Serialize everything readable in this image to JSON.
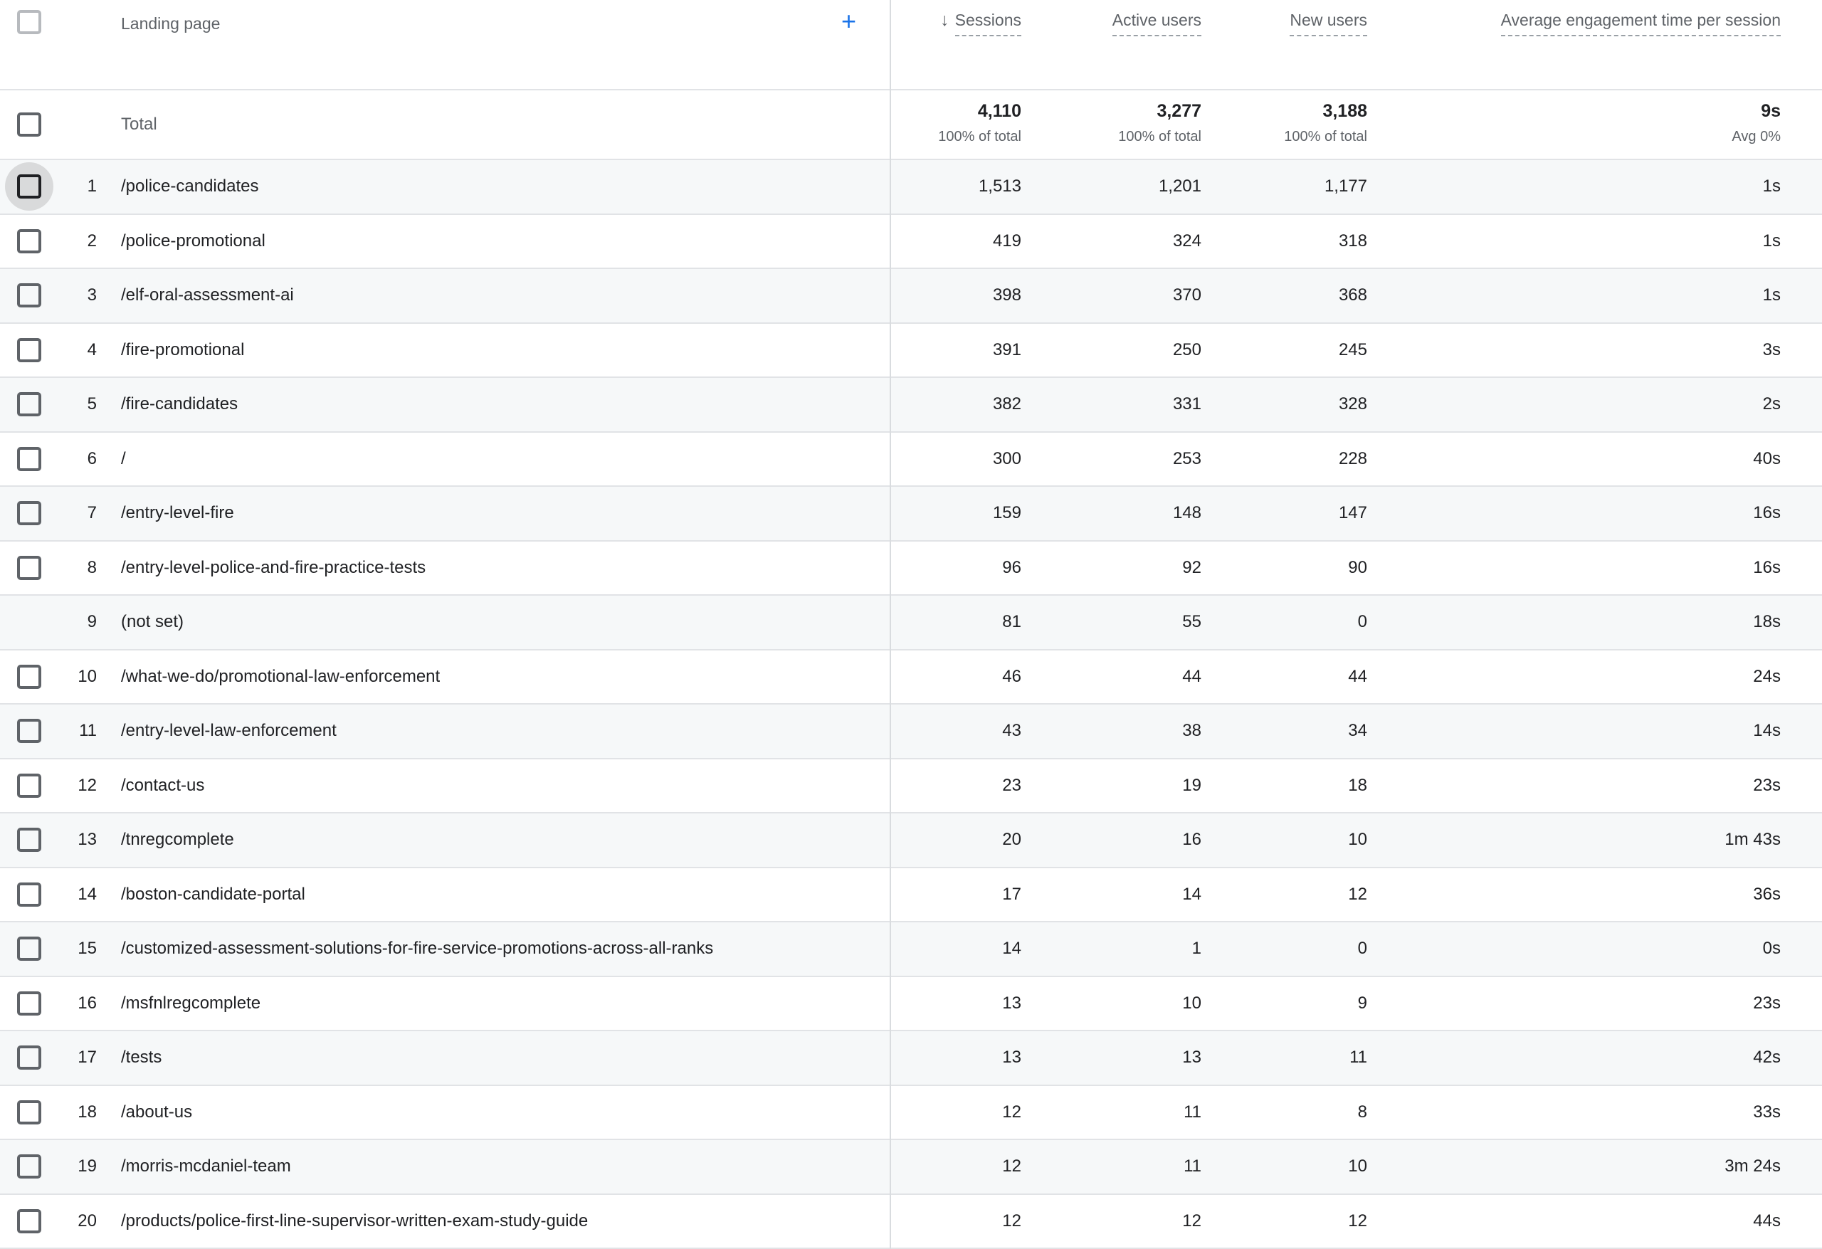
{
  "table": {
    "dimension_header": "Landing page",
    "add_button_label": "+",
    "sort_icon": "↓",
    "columns": [
      "Sessions",
      "Active users",
      "New users",
      "Average engagement time per session"
    ],
    "total": {
      "label": "Total",
      "values": [
        {
          "value": "4,110",
          "sub": "100% of total"
        },
        {
          "value": "3,277",
          "sub": "100% of total"
        },
        {
          "value": "3,188",
          "sub": "100% of total"
        },
        {
          "value": "9s",
          "sub": "Avg 0%"
        }
      ]
    },
    "rows": [
      {
        "index": "1",
        "checkbox": true,
        "highlighted": true,
        "landing_page": "/police-candidates",
        "sessions": "1,513",
        "active_users": "1,201",
        "new_users": "1,177",
        "avg_engagement": "1s"
      },
      {
        "index": "2",
        "checkbox": true,
        "highlighted": false,
        "landing_page": "/police-promotional",
        "sessions": "419",
        "active_users": "324",
        "new_users": "318",
        "avg_engagement": "1s"
      },
      {
        "index": "3",
        "checkbox": true,
        "highlighted": false,
        "landing_page": "/elf-oral-assessment-ai",
        "sessions": "398",
        "active_users": "370",
        "new_users": "368",
        "avg_engagement": "1s"
      },
      {
        "index": "4",
        "checkbox": true,
        "highlighted": false,
        "landing_page": "/fire-promotional",
        "sessions": "391",
        "active_users": "250",
        "new_users": "245",
        "avg_engagement": "3s"
      },
      {
        "index": "5",
        "checkbox": true,
        "highlighted": false,
        "landing_page": "/fire-candidates",
        "sessions": "382",
        "active_users": "331",
        "new_users": "328",
        "avg_engagement": "2s"
      },
      {
        "index": "6",
        "checkbox": true,
        "highlighted": false,
        "landing_page": "/",
        "sessions": "300",
        "active_users": "253",
        "new_users": "228",
        "avg_engagement": "40s"
      },
      {
        "index": "7",
        "checkbox": true,
        "highlighted": false,
        "landing_page": "/entry-level-fire",
        "sessions": "159",
        "active_users": "148",
        "new_users": "147",
        "avg_engagement": "16s"
      },
      {
        "index": "8",
        "checkbox": true,
        "highlighted": false,
        "landing_page": "/entry-level-police-and-fire-practice-tests",
        "sessions": "96",
        "active_users": "92",
        "new_users": "90",
        "avg_engagement": "16s"
      },
      {
        "index": "9",
        "checkbox": false,
        "highlighted": false,
        "landing_page": "(not set)",
        "sessions": "81",
        "active_users": "55",
        "new_users": "0",
        "avg_engagement": "18s"
      },
      {
        "index": "10",
        "checkbox": true,
        "highlighted": false,
        "landing_page": "/what-we-do/promotional-law-enforcement",
        "sessions": "46",
        "active_users": "44",
        "new_users": "44",
        "avg_engagement": "24s"
      },
      {
        "index": "11",
        "checkbox": true,
        "highlighted": false,
        "landing_page": "/entry-level-law-enforcement",
        "sessions": "43",
        "active_users": "38",
        "new_users": "34",
        "avg_engagement": "14s"
      },
      {
        "index": "12",
        "checkbox": true,
        "highlighted": false,
        "landing_page": "/contact-us",
        "sessions": "23",
        "active_users": "19",
        "new_users": "18",
        "avg_engagement": "23s"
      },
      {
        "index": "13",
        "checkbox": true,
        "highlighted": false,
        "landing_page": "/tnregcomplete",
        "sessions": "20",
        "active_users": "16",
        "new_users": "10",
        "avg_engagement": "1m 43s"
      },
      {
        "index": "14",
        "checkbox": true,
        "highlighted": false,
        "landing_page": "/boston-candidate-portal",
        "sessions": "17",
        "active_users": "14",
        "new_users": "12",
        "avg_engagement": "36s"
      },
      {
        "index": "15",
        "checkbox": true,
        "highlighted": false,
        "landing_page": "/customized-assessment-solutions-for-fire-service-promotions-across-all-ranks",
        "sessions": "14",
        "active_users": "1",
        "new_users": "0",
        "avg_engagement": "0s"
      },
      {
        "index": "16",
        "checkbox": true,
        "highlighted": false,
        "landing_page": "/msfnlregcomplete",
        "sessions": "13",
        "active_users": "10",
        "new_users": "9",
        "avg_engagement": "23s"
      },
      {
        "index": "17",
        "checkbox": true,
        "highlighted": false,
        "landing_page": "/tests",
        "sessions": "13",
        "active_users": "13",
        "new_users": "11",
        "avg_engagement": "42s"
      },
      {
        "index": "18",
        "checkbox": true,
        "highlighted": false,
        "landing_page": "/about-us",
        "sessions": "12",
        "active_users": "11",
        "new_users": "8",
        "avg_engagement": "33s"
      },
      {
        "index": "19",
        "checkbox": true,
        "highlighted": false,
        "landing_page": "/morris-mcdaniel-team",
        "sessions": "12",
        "active_users": "11",
        "new_users": "10",
        "avg_engagement": "3m 24s"
      },
      {
        "index": "20",
        "checkbox": true,
        "highlighted": false,
        "landing_page": "/products/police-first-line-supervisor-written-exam-study-guide",
        "sessions": "12",
        "active_users": "12",
        "new_users": "12",
        "avg_engagement": "44s"
      }
    ]
  },
  "colors": {
    "accent_blue": "#1a73e8",
    "header_text": "#5f6368",
    "data_text": "#202124",
    "row_band": "#f6f8f9",
    "row_separator": "#e1e3e6",
    "column_divider": "#d9dcdf",
    "checkbox_border": "#5f6368",
    "checkbox_hover_circle": "#d9dadb"
  }
}
